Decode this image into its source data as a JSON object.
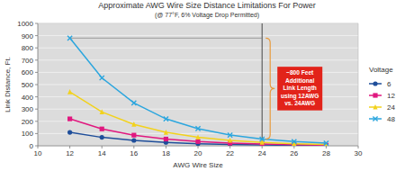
{
  "chart_data": {
    "type": "line",
    "title": "Approximate AWG Wire Size Distance Limitations For Power",
    "subtitle": "(@ 77°F, 6% Voltage Drop Permitted)",
    "x_label": "AWG Wire Size",
    "y_label": "Link Distance, Ft.",
    "legend_title": "Voltage",
    "legend": "right",
    "grid": true,
    "x": [
      12,
      14,
      16,
      18,
      20,
      22,
      24,
      26,
      28
    ],
    "series": [
      {
        "name": "6",
        "color": "#1f4e9a",
        "marker": "circle",
        "values": [
          110,
          69,
          44,
          28,
          17,
          11,
          7,
          4,
          3
        ]
      },
      {
        "name": "12",
        "color": "#e0187f",
        "marker": "square",
        "values": [
          220,
          138,
          87,
          55,
          35,
          22,
          14,
          9,
          5
        ]
      },
      {
        "name": "24",
        "color": "#f2d21c",
        "marker": "triangle",
        "values": [
          440,
          277,
          175,
          110,
          70,
          44,
          28,
          17,
          11
        ]
      },
      {
        "name": "48",
        "color": "#2ca6de",
        "marker": "x",
        "values": [
          880,
          555,
          350,
          220,
          140,
          88,
          55,
          35,
          22
        ]
      }
    ],
    "xlim": [
      10,
      30
    ],
    "xticks": [
      10,
      12,
      14,
      16,
      18,
      20,
      22,
      24,
      26,
      28,
      30
    ],
    "ylim": [
      0,
      1000
    ],
    "yticks": [
      0,
      100,
      200,
      300,
      400,
      500,
      600,
      700,
      800,
      900,
      1000
    ],
    "annotations": [
      {
        "lines": [
          "~800 Feet",
          "Additional",
          "Link Length",
          "using 12AWG",
          "vs. 24AWG"
        ],
        "x": 24,
        "y": 880,
        "y_end": 55
      }
    ]
  }
}
